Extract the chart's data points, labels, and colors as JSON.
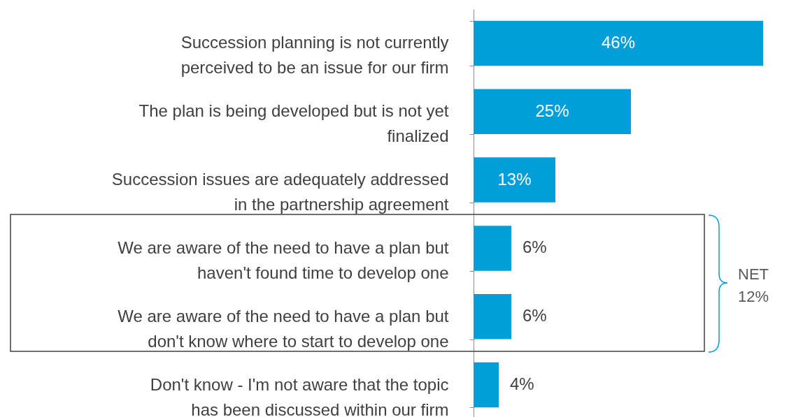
{
  "chart_data": {
    "type": "bar",
    "orientation": "horizontal",
    "categories": [
      "Succession planning is not currently\nperceived to be an issue for our firm",
      "The plan is being developed but is not yet\nfinalized",
      "Succession issues are adequately addressed\nin the partnership agreement",
      "We are aware of the need to have a plan but\nhaven't found time to develop one",
      "We are aware of the need to have a plan but\ndon't know where to start to develop one",
      "Don't know - I'm not aware that the topic\nhas been discussed within our firm"
    ],
    "values": [
      46,
      25,
      13,
      6,
      6,
      4
    ],
    "value_labels": [
      "46%",
      "25%",
      "13%",
      "6%",
      "6%",
      "4%"
    ],
    "color": "#009fda",
    "annotations": [
      "NET\n12%"
    ]
  }
}
